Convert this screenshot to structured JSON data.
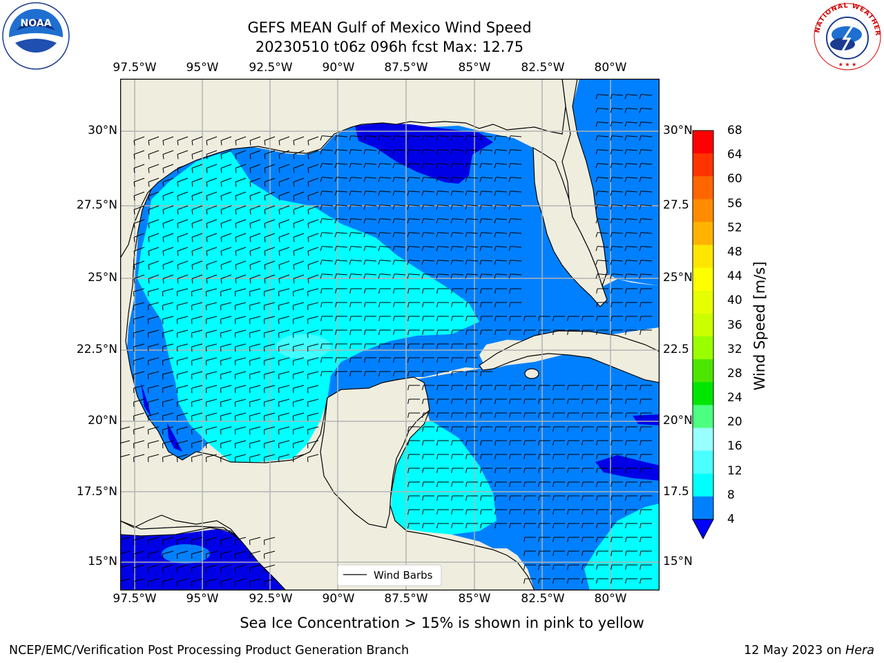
{
  "title": {
    "line1": "GEFS MEAN Gulf of Mexico Wind Speed",
    "line2": "20230510 t06z 096h fcst   Max: 12.75"
  },
  "logos": {
    "left": "NOAA",
    "right": "NATIONAL WEATHER SERVICE"
  },
  "map": {
    "lon_labels": [
      "97.5°W",
      "95°W",
      "92.5°W",
      "90°W",
      "87.5°W",
      "85°W",
      "82.5°W",
      "80°W"
    ],
    "lat_labels_left": [
      "30°N",
      "27.5°N",
      "25°N",
      "22.5°N",
      "20°N",
      "17.5°N",
      "15°N"
    ],
    "lat_labels_right": [
      "30°N",
      "27.5",
      "25°N",
      "22.5",
      "20°N",
      "17.5",
      "15°N"
    ],
    "legend_label": "Wind Barbs",
    "colors": {
      "land": "#efedde",
      "ocean_4_8": "#0080ff",
      "ocean_8_12": "#00ffff",
      "ocean_12_16": "#40ffff",
      "ocean_below_4": "#0000e6",
      "grid": "#b3b3b3"
    }
  },
  "colorbar": {
    "label": "Wind Speed [m/s]",
    "ticks": [
      "68",
      "64",
      "60",
      "56",
      "52",
      "48",
      "44",
      "40",
      "36",
      "32",
      "28",
      "24",
      "20",
      "16",
      "12",
      "8",
      "4"
    ],
    "colors": [
      "#ff0000",
      "#ff3300",
      "#ff6600",
      "#ff8c00",
      "#ffb300",
      "#ffe600",
      "#ffff00",
      "#e6ff00",
      "#ccff00",
      "#99ff00",
      "#4ce600",
      "#00e600",
      "#4cff80",
      "#99ffff",
      "#4cffff",
      "#00ffff",
      "#0080ff"
    ],
    "under_color": "#0000ff"
  },
  "note": "Sea Ice Concentration > 15% is shown in pink to yellow",
  "footer": {
    "left": "NCEP/EMC/Verification Post Processing Product Generation Branch",
    "right_prefix": "12 May 2023 on ",
    "right_host": "Hera"
  }
}
